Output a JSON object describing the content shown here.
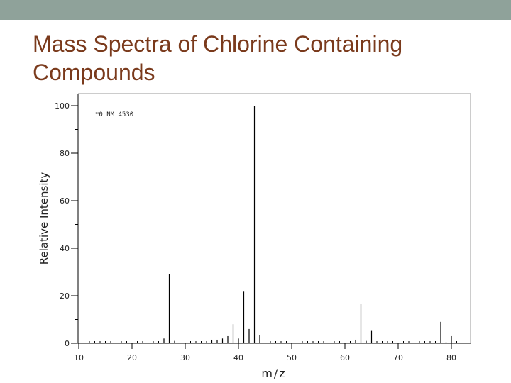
{
  "title_lines": [
    "Mass Spectra of Chlorine Containing",
    "Compounds"
  ],
  "colors": {
    "band": "#8fa29a",
    "title": "#7a3a1c",
    "ink": "#000000"
  },
  "chart_data": {
    "type": "bar",
    "annotation": "*0 NM 4530",
    "xlabel": "m/z",
    "ylabel": "Relative Intensity",
    "xlim": [
      10,
      82
    ],
    "ylim": [
      0,
      100
    ],
    "x_ticks": [
      10,
      20,
      30,
      40,
      50,
      60,
      70,
      80
    ],
    "y_ticks": [
      0,
      20,
      40,
      60,
      80,
      100
    ],
    "grid": false,
    "x": [
      26,
      27,
      28,
      35,
      36,
      37,
      38,
      39,
      40,
      41,
      42,
      43,
      44,
      62,
      63,
      64,
      65,
      78,
      79,
      80
    ],
    "values": [
      2,
      29,
      1,
      1.5,
      1.5,
      2,
      3,
      8,
      2,
      22,
      6,
      100,
      3.5,
      1.5,
      16.5,
      1,
      5.5,
      9,
      0.5,
      3
    ]
  }
}
